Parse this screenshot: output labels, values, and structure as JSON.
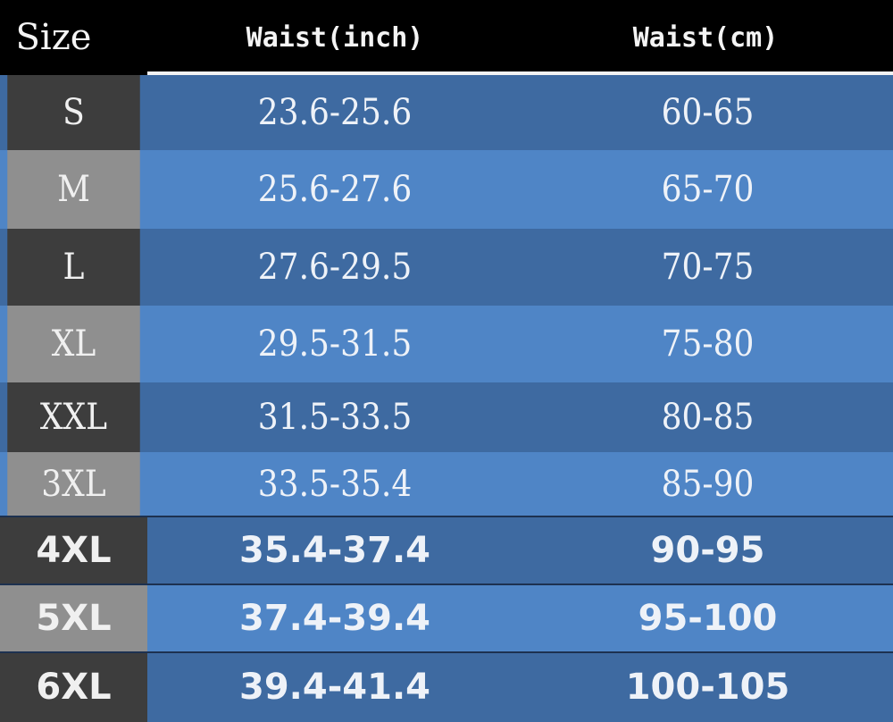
{
  "header": {
    "size": "Size",
    "waist_inch": "Waist(inch)",
    "waist_cm": "Waist(cm)"
  },
  "rows": [
    {
      "size": "S",
      "inch": "23.6-25.6",
      "cm": "60-65"
    },
    {
      "size": "M",
      "inch": "25.6-27.6",
      "cm": "65-70"
    },
    {
      "size": "L",
      "inch": "27.6-29.5",
      "cm": "70-75"
    },
    {
      "size": "XL",
      "inch": "29.5-31.5",
      "cm": "75-80"
    },
    {
      "size": "XXL",
      "inch": "31.5-33.5",
      "cm": "80-85"
    },
    {
      "size": "3XL",
      "inch": "33.5-35.4",
      "cm": "85-90"
    },
    {
      "size": "4XL",
      "inch": "35.4-37.4",
      "cm": "90-95"
    },
    {
      "size": "5XL",
      "inch": "37.4-39.4",
      "cm": "95-100"
    },
    {
      "size": "6XL",
      "inch": "39.4-41.4",
      "cm": "100-105"
    }
  ],
  "colors": {
    "header_bg": "#000000",
    "row_dark": "#3e6aa1",
    "row_light": "#4f85c6",
    "size_dark": "#3d3d3d",
    "size_light": "#8f8f8f"
  }
}
